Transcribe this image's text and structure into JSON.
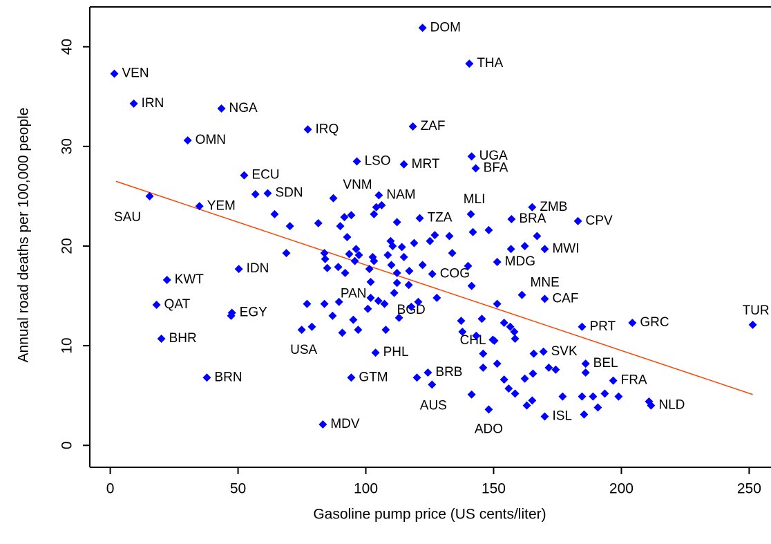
{
  "chart_data": {
    "type": "scatter",
    "x_label": "Gasoline pump price (US cents/liter)",
    "y_label": "Annual road deaths per 100,000 people",
    "color": "#0000ff",
    "labels": [
      "VEN",
      "IRN",
      "NGA",
      "IRQ",
      "OMN",
      "DOM",
      "THA",
      "ZAF",
      "UGA",
      "BFA",
      "MRT",
      "LSO",
      "ECU",
      "SDN",
      "YEM",
      "SAU",
      "VNM",
      "NAM",
      "MLI",
      "ZMB",
      "TZA",
      "BRA",
      "CPV",
      "MWI",
      "MDG",
      "IDN",
      "KWT",
      "COG",
      "PAN",
      "MNE",
      "CAF",
      "QAT",
      "EGY",
      "GRC",
      "PRT",
      "TUR",
      "BGD",
      "USA",
      "BHR",
      "CHL",
      "SVK",
      "PHL",
      "BEL",
      "BRB",
      "FRA",
      "GTM",
      "BRN",
      "AUS",
      "NLD",
      "ISL",
      "ADO",
      "MDV",
      null,
      null,
      null,
      null,
      null,
      null,
      null,
      null,
      null,
      null,
      null,
      null,
      null,
      null,
      null,
      null,
      null,
      null,
      null,
      null,
      null,
      null,
      null,
      null,
      null,
      null,
      null,
      null,
      null,
      null,
      null,
      null,
      null,
      null,
      null,
      null,
      null,
      null,
      null,
      null,
      null,
      null,
      null,
      null,
      null,
      null,
      null,
      null,
      null,
      null,
      null,
      null,
      null,
      null,
      null,
      null,
      null,
      null,
      null,
      null,
      null,
      null,
      null,
      null,
      null,
      null,
      null,
      null,
      null,
      null,
      null,
      null,
      null,
      null,
      null,
      null,
      null,
      null,
      null,
      null,
      null,
      null,
      null,
      null,
      null,
      null,
      null,
      null,
      null,
      null,
      null,
      null,
      null,
      null,
      null,
      null,
      null,
      null,
      null,
      null
    ],
    "x": [
      1.6,
      9.2,
      43.5,
      77.3,
      30.3,
      122.2,
      140.5,
      118.4,
      141.4,
      143.0,
      114.9,
      96.5,
      52.4,
      61.6,
      34.9,
      15.4,
      87.3,
      105.1,
      141.1,
      165.1,
      121.1,
      157.0,
      183.0,
      170.0,
      151.4,
      50.3,
      22.2,
      126.0,
      89.5,
      161.1,
      170.0,
      18.1,
      47.6,
      204.3,
      184.6,
      251.4,
      113.0,
      74.9,
      20.0,
      150.3,
      169.5,
      103.8,
      186.0,
      124.3,
      196.8,
      94.3,
      37.8,
      125.9,
      211.6,
      170.0,
      148.1,
      83.2,
      56.8,
      64.3,
      70.3,
      81.4,
      68.9,
      83.8,
      84.1,
      84.9,
      90.0,
      91.6,
      92.7,
      94.3,
      96.2,
      93.5,
      97.3,
      95.7,
      89.2,
      91.9,
      102.7,
      101.4,
      103.2,
      103.2,
      106.2,
      104.1,
      112.2,
      109.7,
      110.5,
      114.1,
      114.9,
      108.6,
      110.0,
      112.2,
      117.0,
      118.9,
      122.2,
      125.1,
      127.0,
      132.7,
      140.0,
      141.4,
      141.9,
      148.1,
      156.8,
      162.2,
      167.0,
      151.4,
      120.5,
      117.8,
      127.8,
      112.2,
      111.1,
      116.8,
      101.9,
      101.9,
      83.8,
      87.0,
      95.1,
      97.0,
      100.8,
      107.3,
      107.8,
      90.8,
      137.3,
      137.8,
      145.4,
      145.9,
      145.9,
      151.4,
      154.1,
      155.9,
      158.4,
      154.1,
      156.5,
      158.1,
      158.4,
      165.7,
      171.6,
      174.3,
      162.2,
      165.4,
      165.1,
      163.0,
      177.0,
      184.6,
      186.0,
      188.9,
      193.5,
      198.9,
      190.8,
      185.4,
      141.4,
      120.0,
      133.8,
      104.9,
      78.9,
      77.0,
      47.3,
      143.2,
      149.7,
      210.8
    ],
    "y": [
      37.3,
      34.3,
      33.8,
      31.7,
      30.6,
      41.9,
      38.3,
      32.0,
      29.0,
      27.8,
      28.2,
      28.5,
      27.1,
      25.3,
      24.0,
      25.0,
      24.8,
      25.1,
      23.2,
      23.9,
      22.8,
      22.7,
      22.5,
      19.7,
      18.4,
      17.7,
      16.6,
      17.2,
      14.4,
      15.1,
      14.7,
      14.1,
      13.3,
      12.3,
      11.9,
      12.1,
      12.8,
      11.6,
      10.7,
      10.5,
      9.4,
      9.3,
      8.2,
      7.3,
      6.5,
      6.8,
      6.8,
      6.1,
      4.0,
      2.9,
      3.6,
      2.1,
      25.2,
      23.2,
      22.0,
      22.3,
      19.3,
      19.3,
      18.7,
      17.8,
      22.0,
      22.9,
      20.9,
      23.1,
      19.7,
      19.2,
      19.1,
      18.5,
      17.9,
      17.3,
      18.9,
      17.7,
      18.5,
      23.2,
      24.1,
      23.9,
      22.4,
      20.5,
      20.0,
      19.9,
      18.9,
      19.1,
      18.1,
      17.3,
      17.5,
      20.3,
      18.1,
      20.5,
      21.1,
      21.0,
      18.0,
      16.0,
      21.4,
      21.6,
      19.7,
      20.0,
      21.0,
      14.2,
      14.4,
      13.9,
      14.8,
      16.3,
      15.3,
      16.1,
      16.4,
      14.8,
      14.2,
      13.0,
      12.6,
      11.6,
      13.7,
      14.2,
      11.6,
      11.3,
      12.5,
      11.4,
      12.7,
      9.2,
      7.8,
      8.2,
      6.6,
      5.7,
      5.2,
      12.3,
      11.9,
      11.4,
      10.7,
      9.2,
      7.8,
      7.6,
      6.7,
      7.2,
      4.5,
      4.0,
      4.9,
      4.9,
      7.3,
      4.9,
      5.2,
      4.9,
      3.8,
      3.1,
      5.1,
      6.8,
      19.3,
      14.5,
      11.9,
      14.2,
      13.0,
      11.0,
      10.6,
      4.4
    ],
    "trend": {
      "color": "#ff4500",
      "x": [
        2.2,
        251.4
      ],
      "y": [
        26.5,
        5.1
      ]
    },
    "xlim": [
      -8,
      258
    ],
    "ylim": [
      -2.2,
      44
    ],
    "xticks": [
      0,
      50,
      100,
      150,
      200,
      250
    ],
    "yticks": [
      0,
      10,
      20,
      30,
      40
    ]
  }
}
